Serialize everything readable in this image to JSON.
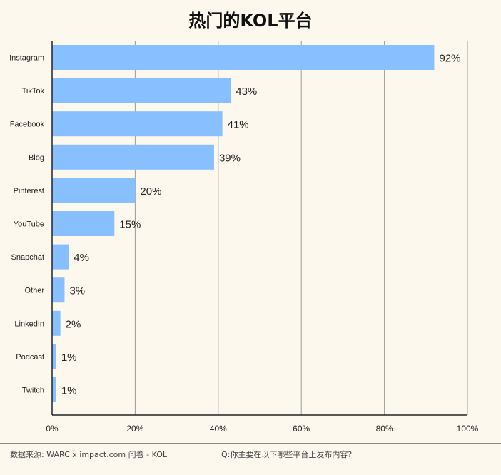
{
  "chart_data": {
    "type": "bar",
    "orientation": "horizontal",
    "title": "热门的KOL平台",
    "categories": [
      "Instagram",
      "TikTok",
      "Facebook",
      "Blog",
      "Pinterest",
      "YouTube",
      "Snapchat",
      "Other",
      "LinkedIn",
      "Podcast",
      "Twitch"
    ],
    "values": [
      92,
      43,
      41,
      39,
      20,
      15,
      4,
      3,
      2,
      1,
      1
    ],
    "value_labels": [
      "92%",
      "43%",
      "41%",
      "39%",
      "20%",
      "15%",
      "4%",
      "3%",
      "2%",
      "1%",
      "1%"
    ],
    "xlim": [
      0,
      100
    ],
    "x_ticks": [
      0,
      20,
      40,
      60,
      80,
      100
    ],
    "x_tick_labels": [
      "0%",
      "20%",
      "40%",
      "60%",
      "80%",
      "100%"
    ],
    "grid": "vertical",
    "bar_color": "#88bfff",
    "grid_color": "#9a9a9a"
  },
  "footer": {
    "source": "数据来源: WARC x impact.com 问卷 - KOL",
    "question": "Q:你主要在以下哪些平台上发布内容?"
  }
}
